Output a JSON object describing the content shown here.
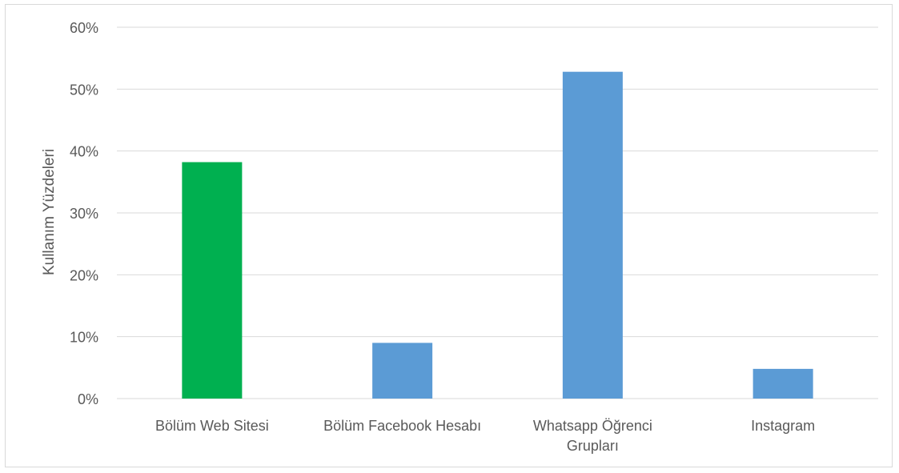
{
  "chart_data": {
    "type": "bar",
    "title": "",
    "xlabel": "",
    "ylabel": "Kullanım Yüzdeleri",
    "categories": [
      [
        "Bölüm Web Sitesi"
      ],
      [
        "Bölüm Facebook Hesabı"
      ],
      [
        "Whatsapp Öğrenci",
        "Grupları"
      ],
      [
        "Instagram"
      ]
    ],
    "values": [
      38.2,
      9.0,
      52.8,
      4.8
    ],
    "bar_colors": [
      "#00b050",
      "#5b9bd5",
      "#5b9bd5",
      "#5b9bd5"
    ],
    "ylim": [
      0,
      60
    ],
    "yticks": [
      0,
      10,
      20,
      30,
      40,
      50,
      60
    ],
    "ytick_labels": [
      "0%",
      "10%",
      "20%",
      "30%",
      "40%",
      "50%",
      "60%"
    ],
    "grid": true,
    "gridline_color": "#d9d9d9",
    "legend": "none"
  }
}
